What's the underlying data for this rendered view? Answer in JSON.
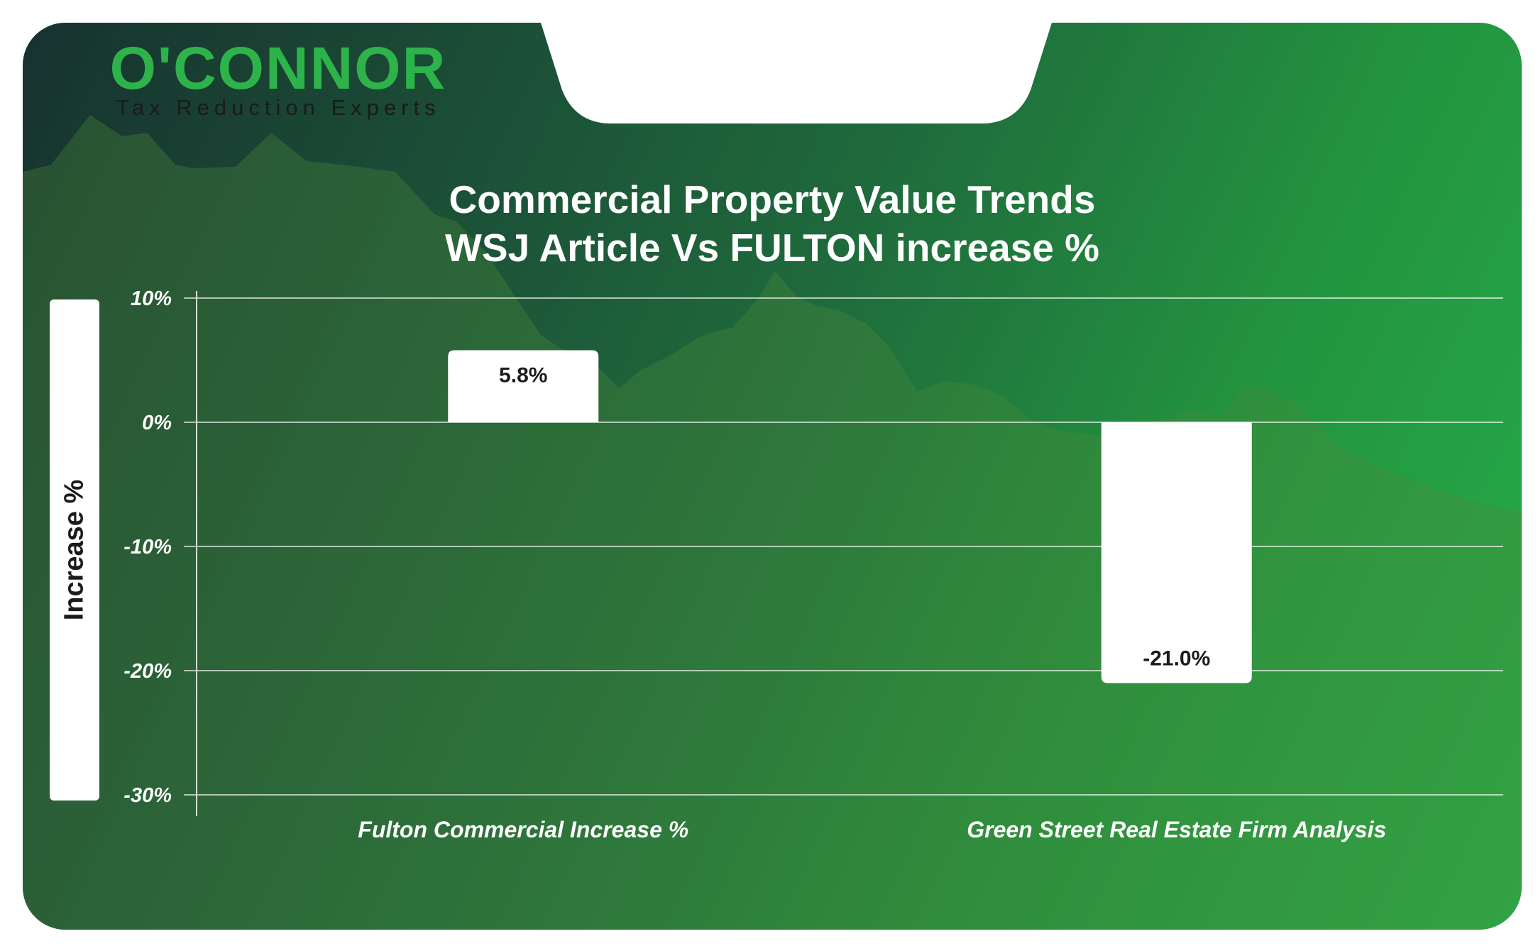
{
  "brand": {
    "logo_text": "O'CONNOR",
    "tagline": "Tax Reduction Experts",
    "accent_color": "#2db34a"
  },
  "chart_data": {
    "type": "bar",
    "title": "Commercial Property Value Trends",
    "subtitle": "WSJ Article Vs FULTON increase %",
    "ylabel": "Increase %",
    "xlabel": "",
    "categories": [
      "Fulton Commercial Increase %",
      "Green Street Real Estate Firm Analysis"
    ],
    "values": [
      5.8,
      -21.0
    ],
    "data_labels": [
      "5.8%",
      "-21.0%"
    ],
    "ylim": [
      -30,
      10
    ],
    "yticks": [
      10,
      0,
      -10,
      -20,
      -30
    ],
    "ytick_labels": [
      "10%",
      "0%",
      "-10%",
      "-20%",
      "-30%"
    ],
    "grid": true,
    "legend": "none",
    "bar_color": "#ffffff",
    "background_colors": [
      "#17322f",
      "#26b04a"
    ]
  }
}
